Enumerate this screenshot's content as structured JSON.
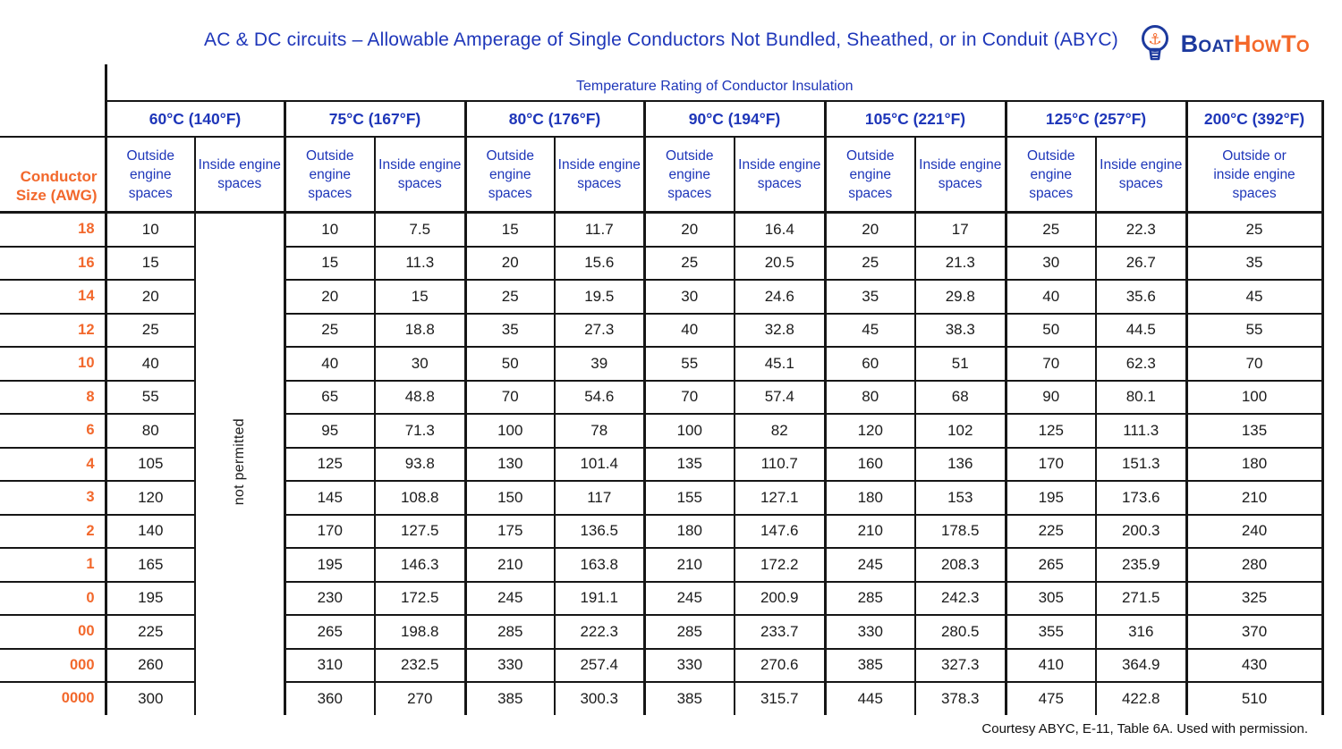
{
  "title": "AC & DC circuits – Allowable Amperage of Single Conductors Not Bundled, Sheathed, or in Conduit (ABYC)",
  "logo": {
    "brand_part1": "Boat",
    "brand_part2": "HowTo",
    "anchor_glyph": "⚓"
  },
  "colors": {
    "header_blue": "#1e36b9",
    "logo_blue": "#1d3a9e",
    "accent_orange": "#f2682c",
    "border": "#161616"
  },
  "table": {
    "super_header": "Temperature Rating of Conductor Insulation",
    "corner_header_line1": "Conductor",
    "corner_header_line2": "Size (AWG)",
    "not_permitted": "not permitted",
    "temp_columns": [
      {
        "label": "60°C (140°F)",
        "sub": [
          "Outside engine spaces",
          "Inside engine spaces"
        ]
      },
      {
        "label": "75°C (167°F)",
        "sub": [
          "Outside engine spaces",
          "Inside engine spaces"
        ]
      },
      {
        "label": "80°C (176°F)",
        "sub": [
          "Outside engine spaces",
          "Inside engine spaces"
        ]
      },
      {
        "label": "90°C (194°F)",
        "sub": [
          "Outside engine spaces",
          "Inside engine spaces"
        ]
      },
      {
        "label": "105°C (221°F)",
        "sub": [
          "Outside engine spaces",
          "Inside engine spaces"
        ]
      },
      {
        "label": "125°C (257°F)",
        "sub": [
          "Outside engine spaces",
          "Inside engine spaces"
        ]
      },
      {
        "label": "200°C (392°F)",
        "sub": [
          "Outside or inside engine spaces"
        ]
      }
    ],
    "rows": [
      {
        "awg": "18",
        "values": [
          "10",
          "10",
          "7.5",
          "15",
          "11.7",
          "20",
          "16.4",
          "20",
          "17",
          "25",
          "22.3",
          "25"
        ]
      },
      {
        "awg": "16",
        "values": [
          "15",
          "15",
          "11.3",
          "20",
          "15.6",
          "25",
          "20.5",
          "25",
          "21.3",
          "30",
          "26.7",
          "35"
        ]
      },
      {
        "awg": "14",
        "values": [
          "20",
          "20",
          "15",
          "25",
          "19.5",
          "30",
          "24.6",
          "35",
          "29.8",
          "40",
          "35.6",
          "45"
        ]
      },
      {
        "awg": "12",
        "values": [
          "25",
          "25",
          "18.8",
          "35",
          "27.3",
          "40",
          "32.8",
          "45",
          "38.3",
          "50",
          "44.5",
          "55"
        ]
      },
      {
        "awg": "10",
        "values": [
          "40",
          "40",
          "30",
          "50",
          "39",
          "55",
          "45.1",
          "60",
          "51",
          "70",
          "62.3",
          "70"
        ]
      },
      {
        "awg": "8",
        "values": [
          "55",
          "65",
          "48.8",
          "70",
          "54.6",
          "70",
          "57.4",
          "80",
          "68",
          "90",
          "80.1",
          "100"
        ]
      },
      {
        "awg": "6",
        "values": [
          "80",
          "95",
          "71.3",
          "100",
          "78",
          "100",
          "82",
          "120",
          "102",
          "125",
          "111.3",
          "135"
        ]
      },
      {
        "awg": "4",
        "values": [
          "105",
          "125",
          "93.8",
          "130",
          "101.4",
          "135",
          "110.7",
          "160",
          "136",
          "170",
          "151.3",
          "180"
        ]
      },
      {
        "awg": "3",
        "values": [
          "120",
          "145",
          "108.8",
          "150",
          "117",
          "155",
          "127.1",
          "180",
          "153",
          "195",
          "173.6",
          "210"
        ]
      },
      {
        "awg": "2",
        "values": [
          "140",
          "170",
          "127.5",
          "175",
          "136.5",
          "180",
          "147.6",
          "210",
          "178.5",
          "225",
          "200.3",
          "240"
        ]
      },
      {
        "awg": "1",
        "values": [
          "165",
          "195",
          "146.3",
          "210",
          "163.8",
          "210",
          "172.2",
          "245",
          "208.3",
          "265",
          "235.9",
          "280"
        ]
      },
      {
        "awg": "0",
        "values": [
          "195",
          "230",
          "172.5",
          "245",
          "191.1",
          "245",
          "200.9",
          "285",
          "242.3",
          "305",
          "271.5",
          "325"
        ]
      },
      {
        "awg": "00",
        "values": [
          "225",
          "265",
          "198.8",
          "285",
          "222.3",
          "285",
          "233.7",
          "330",
          "280.5",
          "355",
          "316",
          "370"
        ]
      },
      {
        "awg": "000",
        "values": [
          "260",
          "310",
          "232.5",
          "330",
          "257.4",
          "330",
          "270.6",
          "385",
          "327.3",
          "410",
          "364.9",
          "430"
        ]
      },
      {
        "awg": "0000",
        "values": [
          "300",
          "360",
          "270",
          "385",
          "300.3",
          "385",
          "315.7",
          "445",
          "378.3",
          "475",
          "422.8",
          "510"
        ]
      }
    ]
  },
  "footer": "Courtesy ABYC, E-11, Table 6A. Used with permission."
}
